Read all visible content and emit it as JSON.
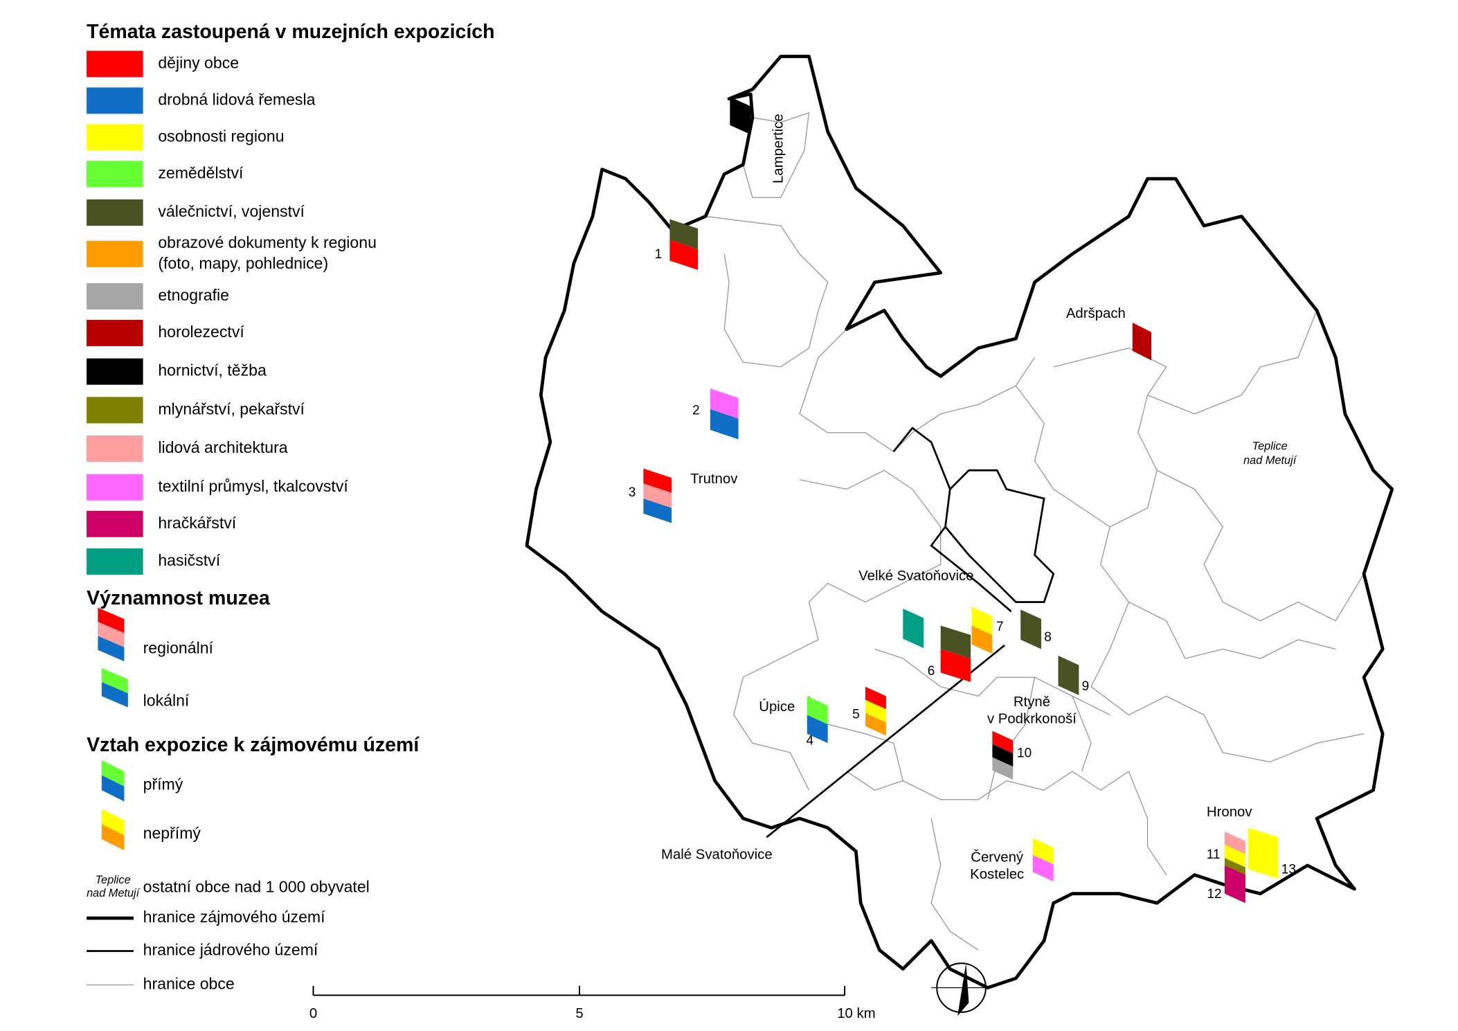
{
  "legend": {
    "title": "Témata zastoupená v muzejních expozicích",
    "items": [
      {
        "label": "dějiny obce",
        "color": "#ff0000"
      },
      {
        "label": "drobná lidová řemesla",
        "color": "#0f6fc6"
      },
      {
        "label": "osobnosti regionu",
        "color": "#ffff00"
      },
      {
        "label": "zemědělství",
        "color": "#66ff33"
      },
      {
        "label": "válečnictví, vojenství",
        "color": "#4a5224"
      },
      {
        "label": [
          "obrazové dokumenty k regionu",
          "(foto, mapy, pohlednice)"
        ],
        "color": "#ff9c00"
      },
      {
        "label": "etnografie",
        "color": "#a6a6a6"
      },
      {
        "label": "horolezectví",
        "color": "#b80000"
      },
      {
        "label": "hornictví, těžba",
        "color": "#000000"
      },
      {
        "label": "mlynářství, pekařství",
        "color": "#808000"
      },
      {
        "label": "lidová architektura",
        "color": "#ff9e9e"
      },
      {
        "label": "textilní průmysl, tkalcovství",
        "color": "#ff66ff"
      },
      {
        "label": "hračkářství",
        "color": "#cc0066"
      },
      {
        "label": "hasičství",
        "color": "#009e82"
      }
    ]
  },
  "significance": {
    "title": "Významnost muzea",
    "items": [
      {
        "label": "regionální",
        "colors": [
          "#ff0000",
          "#ff9e9e",
          "#0f6fc6"
        ]
      },
      {
        "label": "lokální",
        "colors": [
          "#66ff33",
          "#0f6fc6"
        ]
      }
    ]
  },
  "relation": {
    "title": "Vztah expozice k zájmovému území",
    "items": [
      {
        "label": "přímý",
        "colors": [
          "#66ff33",
          "#0f6fc6"
        ]
      },
      {
        "label": "nepřímý",
        "colors": [
          "#ffff00",
          "#ff9c00"
        ]
      }
    ]
  },
  "lines": {
    "sample": [
      "Teplice",
      "nad Metují"
    ],
    "items": [
      "ostatní obce nad 1 000 obyvatel",
      "hranice zájmového území",
      "hranice jádrového území",
      "hranice obce"
    ]
  },
  "places": [
    {
      "label": [
        "Lampertice"
      ]
    },
    {
      "label": [
        "Adršpach"
      ]
    },
    {
      "label": [
        "Teplice",
        "nad Metují"
      ]
    },
    {
      "label": [
        "Trutnov"
      ]
    },
    {
      "label": [
        "Velké Svatoňovice"
      ]
    },
    {
      "label": [
        "Úpice"
      ]
    },
    {
      "label": [
        "Rtyně",
        "v Podkrkonoší"
      ]
    },
    {
      "label": [
        "Malé Svatoňovice"
      ]
    },
    {
      "label": [
        "Červený",
        "Kostelec"
      ]
    },
    {
      "label": [
        "Hronov"
      ]
    }
  ],
  "museums": [
    {
      "colors": [
        "#000000"
      ]
    },
    {
      "label": "1",
      "colors": [
        "#4a5224",
        "#ff0000"
      ]
    },
    {
      "label": "2",
      "colors": [
        "#ff66ff",
        "#0f6fc6"
      ]
    },
    {
      "label": "3",
      "colors": [
        "#ff0000",
        "#ff9e9e",
        "#0f6fc6"
      ]
    },
    {
      "colors": [
        "#b80000"
      ]
    },
    {
      "colors": [
        "#009e82"
      ]
    },
    {
      "label": "6",
      "colors": [
        "#4a5224",
        "#ff0000"
      ]
    },
    {
      "label": "7",
      "colors": [
        "#ffff00",
        "#ff9c00"
      ]
    },
    {
      "label": "8",
      "colors": [
        "#4a5224"
      ]
    },
    {
      "label": "9",
      "colors": [
        "#4a5224"
      ]
    },
    {
      "label": "4",
      "colors": [
        "#66ff33",
        "#0f6fc6"
      ]
    },
    {
      "label": "5",
      "colors": [
        "#ff0000",
        "#ffff00",
        "#ff9c00"
      ]
    },
    {
      "label": "10",
      "colors": [
        "#ff0000",
        "#000000",
        "#a6a6a6"
      ]
    },
    {
      "colors": [
        "#ffff00",
        "#ff66ff"
      ]
    },
    {
      "label": "11",
      "colors": [
        "#ff9e9e",
        "#ffff00",
        "#808000"
      ]
    },
    {
      "label": "12",
      "colors": [
        "#cc0066"
      ]
    },
    {
      "label": "13",
      "colors": [
        "#ffff00"
      ]
    }
  ],
  "scale": {
    "ticks": [
      "0",
      "5",
      "10 km"
    ]
  }
}
